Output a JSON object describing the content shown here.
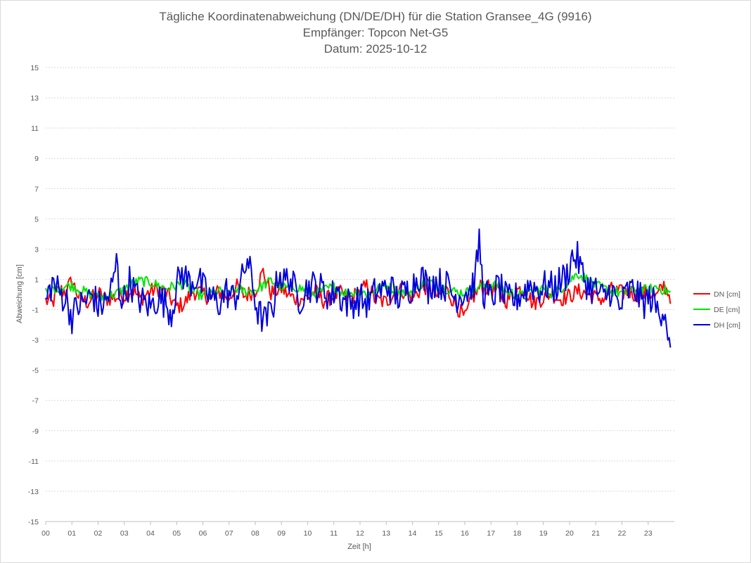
{
  "chart_data": {
    "type": "line",
    "title_lines": [
      "Tägliche Koordinatenabweichung (DN/DE/DH) für die Station Gransee_4G (9916)",
      "Empfänger: Topcon Net-G5",
      "Datum: 2025-10-12"
    ],
    "xlabel": "Zeit [h]",
    "ylabel": "Abweichung [cm]",
    "xlim": [
      0,
      24
    ],
    "ylim": [
      -15,
      15
    ],
    "x_ticks": [
      "00",
      "01",
      "02",
      "03",
      "04",
      "05",
      "06",
      "07",
      "08",
      "09",
      "10",
      "11",
      "12",
      "13",
      "14",
      "15",
      "16",
      "17",
      "18",
      "19",
      "20",
      "21",
      "22",
      "23"
    ],
    "y_ticks": [
      15,
      13,
      11,
      9,
      7,
      5,
      3,
      1,
      -1,
      -3,
      -5,
      -7,
      -9,
      -11,
      -13,
      -15
    ],
    "grid": "horizontal-dotted",
    "legend_position": "right",
    "x_step_hours": 0.05,
    "series": [
      {
        "name": "DN [cm]",
        "color": "#ff0000",
        "anchors": [
          [
            0,
            -0.4
          ],
          [
            0.25,
            -0.6
          ],
          [
            0.5,
            0.3
          ],
          [
            0.75,
            0.2
          ],
          [
            1,
            0.9
          ],
          [
            1.3,
            -0.3
          ],
          [
            1.6,
            -0.5
          ],
          [
            2,
            0.1
          ],
          [
            2.3,
            -0.3
          ],
          [
            2.6,
            -0.2
          ],
          [
            3,
            -0.1
          ],
          [
            3.3,
            0.4
          ],
          [
            3.6,
            -0.3
          ],
          [
            4,
            0.2
          ],
          [
            4.3,
            0.4
          ],
          [
            4.6,
            0.1
          ],
          [
            5,
            -0.8
          ],
          [
            5.3,
            -0.6
          ],
          [
            5.6,
            0.2
          ],
          [
            6,
            0.1
          ],
          [
            6.3,
            -0.3
          ],
          [
            6.6,
            0.2
          ],
          [
            7,
            -0.2
          ],
          [
            7.3,
            0.5
          ],
          [
            7.6,
            -0.1
          ],
          [
            8,
            0.3
          ],
          [
            8.3,
            1.5
          ],
          [
            8.6,
            0.1
          ],
          [
            9,
            0.4
          ],
          [
            9.3,
            -0.1
          ],
          [
            9.6,
            -0.3
          ],
          [
            10,
            -0.2
          ],
          [
            10.3,
            0.2
          ],
          [
            10.6,
            -0.4
          ],
          [
            11,
            -0.1
          ],
          [
            11.3,
            0.1
          ],
          [
            11.6,
            -0.3
          ],
          [
            12,
            0.2
          ],
          [
            12.3,
            0.6
          ],
          [
            12.6,
            -0.4
          ],
          [
            13,
            -0.5
          ],
          [
            13.3,
            0.1
          ],
          [
            13.6,
            0.3
          ],
          [
            14,
            -0.2
          ],
          [
            14.3,
            0.3
          ],
          [
            14.6,
            0.6
          ],
          [
            15,
            -0.2
          ],
          [
            15.3,
            0.3
          ],
          [
            15.6,
            -0.5
          ],
          [
            16,
            -1.6
          ],
          [
            16.3,
            -0.2
          ],
          [
            16.6,
            0.5
          ],
          [
            17,
            0.4
          ],
          [
            17.3,
            0.1
          ],
          [
            17.6,
            -0.4
          ],
          [
            18,
            0.3
          ],
          [
            18.3,
            0.4
          ],
          [
            18.6,
            -0.6
          ],
          [
            19,
            -0.2
          ],
          [
            19.3,
            0.1
          ],
          [
            19.6,
            -0.3
          ],
          [
            20,
            -0.1
          ],
          [
            20.3,
            0.2
          ],
          [
            20.6,
            0.1
          ],
          [
            21,
            -0.2
          ],
          [
            21.3,
            -0.3
          ],
          [
            21.6,
            0.3
          ],
          [
            22,
            0.1
          ],
          [
            22.3,
            0.2
          ],
          [
            22.6,
            -0.1
          ],
          [
            23,
            0.2
          ],
          [
            23.3,
            -0.2
          ],
          [
            23.6,
            0.6
          ],
          [
            23.85,
            -0.1
          ]
        ]
      },
      {
        "name": "DE [cm]",
        "color": "#00e600",
        "anchors": [
          [
            0,
            0.1
          ],
          [
            0.3,
            0.4
          ],
          [
            0.6,
            0.5
          ],
          [
            1,
            0.6
          ],
          [
            1.3,
            0.3
          ],
          [
            1.6,
            0.1
          ],
          [
            2,
            -0.2
          ],
          [
            2.3,
            -0.1
          ],
          [
            2.6,
            0.0
          ],
          [
            3,
            0.3
          ],
          [
            3.3,
            0.7
          ],
          [
            3.6,
            0.9
          ],
          [
            4,
            0.8
          ],
          [
            4.3,
            0.6
          ],
          [
            4.6,
            0.4
          ],
          [
            5,
            0.6
          ],
          [
            5.3,
            0.7
          ],
          [
            5.6,
            0.2
          ],
          [
            6,
            -0.1
          ],
          [
            6.3,
            0.0
          ],
          [
            6.6,
            0.2
          ],
          [
            7,
            0.1
          ],
          [
            7.3,
            0.4
          ],
          [
            7.6,
            0.2
          ],
          [
            8,
            0.3
          ],
          [
            8.3,
            0.6
          ],
          [
            8.6,
            0.9
          ],
          [
            9,
            0.5
          ],
          [
            9.3,
            0.4
          ],
          [
            9.6,
            0.5
          ],
          [
            10,
            0.2
          ],
          [
            10.3,
            0.0
          ],
          [
            10.6,
            0.3
          ],
          [
            11,
            0.5
          ],
          [
            11.3,
            0.2
          ],
          [
            11.6,
            0.1
          ],
          [
            12,
            0.2
          ],
          [
            12.3,
            0.0
          ],
          [
            12.6,
            0.3
          ],
          [
            13,
            0.6
          ],
          [
            13.3,
            0.3
          ],
          [
            13.6,
            0.1
          ],
          [
            14,
            0.2
          ],
          [
            14.3,
            0.6
          ],
          [
            14.6,
            0.8
          ],
          [
            15,
            0.5
          ],
          [
            15.3,
            0.4
          ],
          [
            15.6,
            0.2
          ],
          [
            16,
            0.1
          ],
          [
            16.3,
            0.3
          ],
          [
            16.6,
            0.5
          ],
          [
            17,
            0.7
          ],
          [
            17.3,
            0.5
          ],
          [
            17.6,
            0.2
          ],
          [
            18,
            0.0
          ],
          [
            18.3,
            -0.1
          ],
          [
            18.6,
            0.2
          ],
          [
            19,
            0.4
          ],
          [
            19.3,
            0.1
          ],
          [
            19.6,
            0.3
          ],
          [
            20,
            0.9
          ],
          [
            20.3,
            1.4
          ],
          [
            20.6,
            1.1
          ],
          [
            21,
            0.6
          ],
          [
            21.3,
            0.4
          ],
          [
            21.6,
            0.2
          ],
          [
            22,
            0.1
          ],
          [
            22.3,
            0.2
          ],
          [
            22.6,
            0.3
          ],
          [
            23,
            0.3
          ],
          [
            23.3,
            0.5
          ],
          [
            23.6,
            0.3
          ],
          [
            23.85,
            0.1
          ]
        ]
      },
      {
        "name": "DH [cm]",
        "color": "#0000dd",
        "anchors": [
          [
            0,
            -0.5
          ],
          [
            0.25,
            0.8
          ],
          [
            0.5,
            0.2
          ],
          [
            0.8,
            -0.4
          ],
          [
            1,
            -1.5
          ],
          [
            1.2,
            -0.8
          ],
          [
            1.5,
            -0.5
          ],
          [
            1.8,
            0.0
          ],
          [
            2,
            -0.8
          ],
          [
            2.3,
            -0.5
          ],
          [
            2.6,
            0.8
          ],
          [
            2.7,
            2.5
          ],
          [
            2.8,
            0.2
          ],
          [
            3,
            -0.3
          ],
          [
            3.2,
            0.9
          ],
          [
            3.5,
            -0.2
          ],
          [
            3.8,
            -0.6
          ],
          [
            4,
            -0.8
          ],
          [
            4.3,
            -0.2
          ],
          [
            4.6,
            -0.6
          ],
          [
            4.8,
            -1.2
          ],
          [
            5,
            0.6
          ],
          [
            5.2,
            1.4
          ],
          [
            5.5,
            0.8
          ],
          [
            5.8,
            1.1
          ],
          [
            6,
            0.4
          ],
          [
            6.3,
            -0.2
          ],
          [
            6.6,
            -0.6
          ],
          [
            6.9,
            0.2
          ],
          [
            7.2,
            -0.3
          ],
          [
            7.5,
            1.0
          ],
          [
            7.7,
            2.4
          ],
          [
            7.9,
            0.6
          ],
          [
            8.1,
            -1.2
          ],
          [
            8.4,
            -1.8
          ],
          [
            8.7,
            -0.6
          ],
          [
            8.9,
            1.6
          ],
          [
            9.1,
            0.8
          ],
          [
            9.3,
            1.2
          ],
          [
            9.5,
            0.3
          ],
          [
            9.7,
            -0.3
          ],
          [
            10,
            0.5
          ],
          [
            10.3,
            0.6
          ],
          [
            10.6,
            0.3
          ],
          [
            10.9,
            -0.2
          ],
          [
            11.1,
            0.5
          ],
          [
            11.3,
            -0.3
          ],
          [
            11.6,
            -0.6
          ],
          [
            12,
            -0.3
          ],
          [
            12.3,
            -0.6
          ],
          [
            12.6,
            0.2
          ],
          [
            12.9,
            0.3
          ],
          [
            13.1,
            0.6
          ],
          [
            13.4,
            -0.2
          ],
          [
            13.7,
            0.1
          ],
          [
            14,
            0.6
          ],
          [
            14.3,
            1.4
          ],
          [
            14.6,
            0.4
          ],
          [
            14.8,
            0.9
          ],
          [
            15.1,
            0.7
          ],
          [
            15.4,
            0.5
          ],
          [
            15.6,
            -0.2
          ],
          [
            15.9,
            0.1
          ],
          [
            16.2,
            0.3
          ],
          [
            16.4,
            1.0
          ],
          [
            16.55,
            3.6
          ],
          [
            16.7,
            0.2
          ],
          [
            17,
            -0.3
          ],
          [
            17.3,
            0.6
          ],
          [
            17.6,
            -0.4
          ],
          [
            17.9,
            -0.3
          ],
          [
            18.2,
            0.1
          ],
          [
            18.5,
            0.7
          ],
          [
            18.8,
            0.3
          ],
          [
            19.1,
            0.6
          ],
          [
            19.4,
            0.4
          ],
          [
            19.7,
            1.0
          ],
          [
            19.9,
            1.3
          ],
          [
            20.1,
            2.5
          ],
          [
            20.3,
            2.4
          ],
          [
            20.5,
            1.3
          ],
          [
            20.7,
            0.6
          ],
          [
            21,
            0.3
          ],
          [
            21.3,
            -0.3
          ],
          [
            21.6,
            0.4
          ],
          [
            21.9,
            -1.0
          ],
          [
            22.2,
            0.2
          ],
          [
            22.5,
            0.3
          ],
          [
            22.8,
            -0.6
          ],
          [
            23.1,
            -0.2
          ],
          [
            23.4,
            -1.2
          ],
          [
            23.6,
            -0.8
          ],
          [
            23.7,
            -1.6
          ],
          [
            23.85,
            -4.2
          ]
        ]
      }
    ]
  }
}
